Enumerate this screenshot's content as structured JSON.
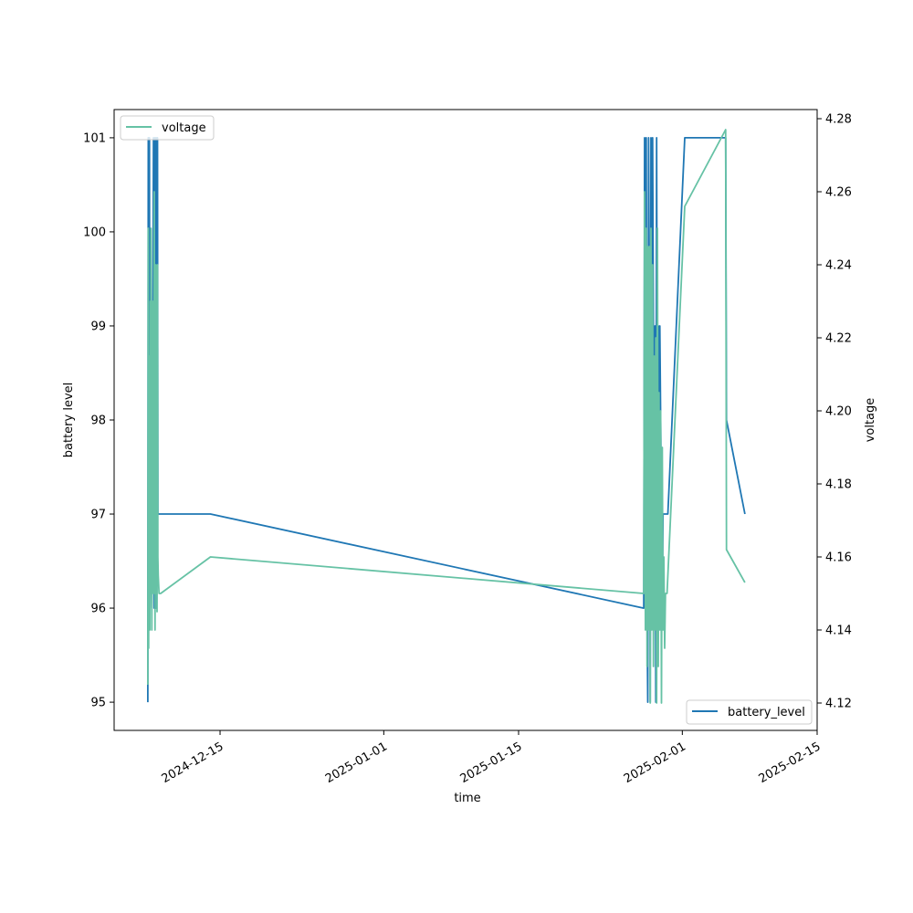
{
  "chart_data": {
    "type": "line",
    "xlabel": "time",
    "ylabel": "battery level",
    "y2label": "voltage",
    "x_ticks": [
      "2024-12-15",
      "2025-01-01",
      "2025-01-15",
      "2025-02-01",
      "2025-02-15"
    ],
    "y_ticks": [
      "95",
      "96",
      "97",
      "98",
      "99",
      "100",
      "101"
    ],
    "y2_ticks": [
      "4.12",
      "4.14",
      "4.16",
      "4.18",
      "4.20",
      "4.22",
      "4.24",
      "4.26",
      "4.28"
    ],
    "ylim": [
      94.7,
      101.3
    ],
    "y2lim": [
      4.1125,
      4.2825
    ],
    "xlim": [
      "2024-12-04",
      "2025-02-15"
    ],
    "grid": false,
    "legends": [
      {
        "entry": "voltage",
        "placement": "upper-left",
        "color": "#66c2a5"
      },
      {
        "entry": "battery_level",
        "placement": "lower-right",
        "color": "#1f77b4"
      }
    ],
    "series": [
      {
        "name": "battery_level",
        "axis": "left",
        "color": "#1f77b4",
        "x": [
          "2024-12-07T12:00",
          "2024-12-07T13:00",
          "2024-12-07T14:00",
          "2024-12-07T15:00",
          "2024-12-07T16:00",
          "2024-12-07T17:00",
          "2024-12-07T18:00",
          "2024-12-07T19:00",
          "2024-12-07T20:00",
          "2024-12-07T22:00",
          "2024-12-08T00:00",
          "2024-12-08T02:00",
          "2024-12-08T04:00",
          "2024-12-08T06:00",
          "2024-12-08T08:00",
          "2024-12-08T09:00",
          "2024-12-08T10:00",
          "2024-12-08T11:00",
          "2024-12-08T12:00",
          "2024-12-08T13:00",
          "2024-12-08T14:00",
          "2024-12-08T15:00",
          "2024-12-08T16:00",
          "2024-12-08T17:00",
          "2024-12-08T18:00",
          "2024-12-08T20:00",
          "2024-12-14T00:00",
          "2025-01-28T00:00",
          "2025-01-28T02:00",
          "2025-01-28T04:00",
          "2025-01-28T06:00",
          "2025-01-28T08:00",
          "2025-01-28T10:00",
          "2025-01-28T12:00",
          "2025-01-28T14:00",
          "2025-01-28T16:00",
          "2025-01-28T18:00",
          "2025-01-28T20:00",
          "2025-01-28T22:00",
          "2025-01-29T00:00",
          "2025-01-29T02:00",
          "2025-01-29T04:00",
          "2025-01-29T06:00",
          "2025-01-29T08:00",
          "2025-01-29T10:00",
          "2025-01-29T12:00",
          "2025-01-29T14:00",
          "2025-01-29T16:00",
          "2025-01-29T18:00",
          "2025-01-29T20:00",
          "2025-01-29T22:00",
          "2025-01-30T00:00",
          "2025-01-30T02:00",
          "2025-01-30T04:00",
          "2025-01-30T06:00",
          "2025-01-30T08:00",
          "2025-01-30T12:00",
          "2025-02-01T06:00",
          "2025-02-05T12:00",
          "2025-02-05T14:00",
          "2025-02-07T12:00"
        ],
        "y": [
          95,
          101,
          99,
          97,
          101,
          96,
          99,
          98,
          97,
          96,
          98,
          101,
          96,
          101,
          96,
          101,
          96,
          97,
          101,
          97,
          97,
          97,
          97,
          97,
          97,
          97,
          97,
          96,
          101,
          96,
          101,
          96,
          95,
          101,
          99,
          95,
          101,
          96,
          101,
          99,
          96,
          99,
          95,
          101,
          97,
          99,
          96,
          99,
          98,
          97,
          96,
          97,
          97,
          97,
          97,
          97,
          97,
          101,
          101,
          98,
          97
        ]
      },
      {
        "name": "voltage",
        "axis": "right",
        "color": "#66c2a5",
        "x": [
          "2024-12-07T12:00",
          "2024-12-07T13:00",
          "2024-12-07T14:00",
          "2024-12-07T15:00",
          "2024-12-07T16:00",
          "2024-12-07T17:00",
          "2024-12-07T18:00",
          "2024-12-07T19:00",
          "2024-12-07T20:00",
          "2024-12-07T22:00",
          "2024-12-08T00:00",
          "2024-12-08T02:00",
          "2024-12-08T04:00",
          "2024-12-08T06:00",
          "2024-12-08T08:00",
          "2024-12-08T09:00",
          "2024-12-08T10:00",
          "2024-12-08T11:00",
          "2024-12-08T12:00",
          "2024-12-08T13:00",
          "2024-12-08T14:00",
          "2024-12-08T16:00",
          "2024-12-08T20:00",
          "2024-12-14T00:00",
          "2025-01-28T00:00",
          "2025-01-28T02:00",
          "2025-01-28T04:00",
          "2025-01-28T06:00",
          "2025-01-28T08:00",
          "2025-01-28T10:00",
          "2025-01-28T12:00",
          "2025-01-28T14:00",
          "2025-01-28T16:00",
          "2025-01-28T18:00",
          "2025-01-28T20:00",
          "2025-01-28T22:00",
          "2025-01-29T00:00",
          "2025-01-29T02:00",
          "2025-01-29T04:00",
          "2025-01-29T06:00",
          "2025-01-29T08:00",
          "2025-01-29T10:00",
          "2025-01-29T12:00",
          "2025-01-29T14:00",
          "2025-01-29T16:00",
          "2025-01-29T18:00",
          "2025-01-29T20:00",
          "2025-01-29T22:00",
          "2025-01-30T00:00",
          "2025-01-30T02:00",
          "2025-01-30T04:00",
          "2025-01-30T06:00",
          "2025-01-30T10:00",
          "2025-02-01T06:00",
          "2025-02-05T12:00",
          "2025-02-05T14:00",
          "2025-02-07T12:00"
        ],
        "y": [
          4.125,
          4.25,
          4.135,
          4.215,
          4.18,
          4.14,
          4.23,
          4.15,
          4.25,
          4.14,
          4.23,
          4.15,
          4.26,
          4.14,
          4.24,
          4.15,
          4.2,
          4.145,
          4.24,
          4.16,
          4.155,
          4.15,
          4.15,
          4.16,
          4.15,
          4.26,
          4.14,
          4.25,
          4.13,
          4.245,
          4.14,
          4.245,
          4.12,
          4.25,
          4.14,
          4.24,
          4.13,
          4.215,
          4.14,
          4.22,
          4.12,
          4.25,
          4.13,
          4.205,
          4.14,
          4.2,
          4.12,
          4.19,
          4.14,
          4.16,
          4.135,
          4.15,
          4.15,
          4.256,
          4.277,
          4.162,
          4.153
        ]
      }
    ]
  }
}
